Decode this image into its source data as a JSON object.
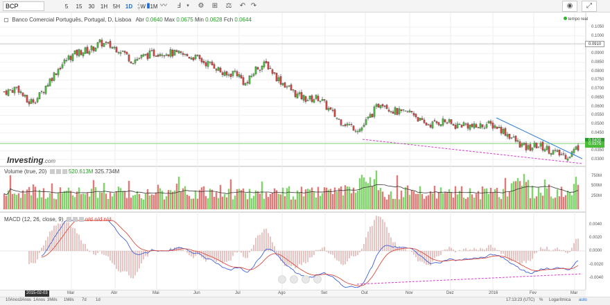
{
  "toolbar": {
    "symbol": "BCP",
    "timeframes": [
      "5",
      "15",
      "30",
      "1H",
      "5H",
      "1D",
      "1W",
      "1M"
    ],
    "active_timeframe": "1D"
  },
  "legend": {
    "title": "Banco Comercial Português, Portugal, D, Lisboa",
    "abr_label": "Abr",
    "abr_value": "0.0640",
    "max_label": "Max",
    "max_value": "0.0675",
    "min_label": "Min",
    "min_value": "0.0628",
    "fch_label": "Fch",
    "fch_value": "0.0644",
    "volume_label": "Volume (true, 20)",
    "volume_val1": "520.613M",
    "volume_val2": "325.734M",
    "macd_label": "MACD (12, 26, close, 9)",
    "macd_vals": "n/d  n/d  n/d"
  },
  "realtime": "tempo real",
  "logo": {
    "main": "Investing",
    "suffix": ".com"
  },
  "price_axis": [
    "0.1050",
    "0.1000",
    "0.0950",
    "0.0900",
    "0.0850",
    "0.0800",
    "0.0750",
    "0.0700",
    "0.0650",
    "0.0600",
    "0.0550",
    "0.0500",
    "0.0450",
    "0.0400",
    "0.0350",
    "0.0300"
  ],
  "price_tags": {
    "crosshair": "0.0910",
    "last": "0.0375",
    "last2": "0.0400"
  },
  "volume_axis": [
    "750M",
    "500M",
    "250M"
  ],
  "macd_axis": [
    "0.0040",
    "0.0020",
    "0.0000",
    "-0.0020",
    "-0.0040"
  ],
  "date_axis": [
    "Mar",
    "Abr",
    "Mai",
    "Jun",
    "Jul",
    "Ago",
    "Set",
    "Out",
    "Nov",
    "Dez",
    "2016",
    "Fev",
    "Mar"
  ],
  "date_start": "2015-02-03",
  "bottom_ranges": [
    "10Anos",
    "3Anos",
    "1Anos",
    "3Mês",
    "1Mês",
    "7d",
    "1d"
  ],
  "footer": {
    "time": "17:13:23 (UTC)",
    "percent": "%",
    "log": "Logarítmica",
    "auto": "auto"
  },
  "colors": {
    "up": "#4cbb3a",
    "down": "#d9443c",
    "vol_up": "#7fd36a",
    "vol_down": "#e07a78",
    "macd": "#3f5fd6",
    "signal": "#d94a3f",
    "trend_blue": "#2e7fd9",
    "trend_pink": "#d63ad1",
    "green_line": "#2a9a2a"
  },
  "chart_data": {
    "type": "candlestick",
    "title": "Banco Comercial Português, Portugal, D, Lisboa",
    "close_path": [
      [
        0,
        0.068
      ],
      [
        15,
        0.069
      ],
      [
        25,
        0.071
      ],
      [
        40,
        0.062
      ],
      [
        55,
        0.065
      ],
      [
        70,
        0.074
      ],
      [
        85,
        0.082
      ],
      [
        100,
        0.088
      ],
      [
        115,
        0.091
      ],
      [
        130,
        0.092
      ],
      [
        145,
        0.096
      ],
      [
        160,
        0.094
      ],
      [
        175,
        0.092
      ],
      [
        190,
        0.086
      ],
      [
        205,
        0.088
      ],
      [
        220,
        0.09
      ],
      [
        235,
        0.091
      ],
      [
        250,
        0.09
      ],
      [
        265,
        0.089
      ],
      [
        280,
        0.088
      ],
      [
        295,
        0.085
      ],
      [
        310,
        0.083
      ],
      [
        325,
        0.077
      ],
      [
        340,
        0.08
      ],
      [
        355,
        0.072
      ],
      [
        370,
        0.082
      ],
      [
        385,
        0.084
      ],
      [
        400,
        0.076
      ],
      [
        415,
        0.071
      ],
      [
        430,
        0.066
      ],
      [
        445,
        0.064
      ],
      [
        460,
        0.065
      ],
      [
        475,
        0.058
      ],
      [
        490,
        0.052
      ],
      [
        505,
        0.049
      ],
      [
        520,
        0.047
      ],
      [
        535,
        0.055
      ],
      [
        550,
        0.063
      ],
      [
        565,
        0.058
      ],
      [
        580,
        0.056
      ],
      [
        595,
        0.057
      ],
      [
        610,
        0.05
      ],
      [
        625,
        0.05
      ],
      [
        640,
        0.052
      ],
      [
        655,
        0.049
      ],
      [
        670,
        0.05
      ],
      [
        685,
        0.048
      ],
      [
        700,
        0.05
      ],
      [
        715,
        0.049
      ],
      [
        730,
        0.045
      ],
      [
        745,
        0.04
      ],
      [
        760,
        0.036
      ],
      [
        775,
        0.038
      ],
      [
        790,
        0.036
      ],
      [
        805,
        0.033
      ],
      [
        820,
        0.032
      ],
      [
        833,
        0.037
      ]
    ],
    "ylim": [
      0.03,
      0.105
    ]
  }
}
